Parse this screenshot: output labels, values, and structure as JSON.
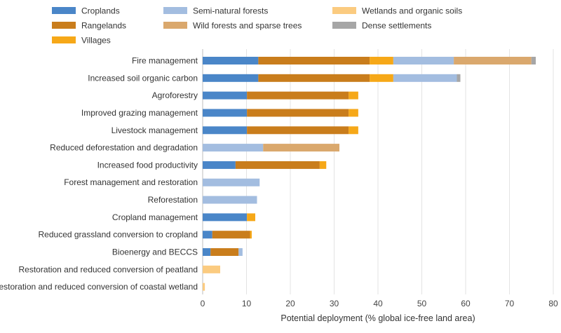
{
  "chart_data": {
    "type": "bar",
    "orientation": "horizontal",
    "stacked": true,
    "xlabel": "Potential deployment (% global ice-free land area)",
    "ylabel": "",
    "xlim": [
      0,
      80
    ],
    "xticks": [
      0,
      10,
      20,
      30,
      40,
      50,
      60,
      70,
      80
    ],
    "grid": true,
    "legend_position": "top",
    "categories": [
      "Fire management",
      "Increased soil organic carbon",
      "Agroforestry",
      "Improved grazing management",
      "Livestock management",
      "Reduced deforestation and degradation",
      "Increased food productivity",
      "Forest management and restoration",
      "Reforestation",
      "Cropland management",
      "Reduced grassland conversion to cropland",
      "Bioenergy and BECCS",
      "Restoration and reduced conversion of peatland",
      "Restoration and reduced conversion of coastal wetland"
    ],
    "series": [
      {
        "name": "Croplands",
        "color": "#4a86c8",
        "values": [
          12.7,
          12.7,
          10.1,
          10.1,
          10.1,
          0,
          7.5,
          0,
          0,
          10.1,
          2.2,
          1.8,
          0,
          0
        ]
      },
      {
        "name": "Rangelands",
        "color": "#c97d1c",
        "values": [
          25.4,
          25.4,
          23.2,
          23.2,
          23.2,
          0,
          19.2,
          0,
          0,
          0,
          8.6,
          6.4,
          0,
          0
        ]
      },
      {
        "name": "Villages",
        "color": "#f6a818",
        "values": [
          5.4,
          5.4,
          2.2,
          2.2,
          2.2,
          0,
          1.5,
          0,
          0,
          1.9,
          0.4,
          0,
          0,
          0
        ]
      },
      {
        "name": "Semi-natural forests",
        "color": "#a3bde0",
        "values": [
          13.8,
          14.5,
          0,
          0,
          0,
          13.8,
          0,
          13.0,
          12.4,
          0,
          0,
          0.9,
          0,
          0
        ]
      },
      {
        "name": "Wild forests and sparse trees",
        "color": "#daa86d",
        "values": [
          17.7,
          0,
          0,
          0,
          0,
          17.4,
          0,
          0,
          0,
          0,
          0,
          0,
          0,
          0
        ]
      },
      {
        "name": "Wetlands and organic soils",
        "color": "#fbcb80",
        "values": [
          0,
          0,
          0,
          0,
          0,
          0,
          0,
          0,
          0,
          0,
          0,
          0,
          4.0,
          0.5
        ]
      },
      {
        "name": "Dense settlements",
        "color": "#a6a6a6",
        "values": [
          1.0,
          0.8,
          0,
          0,
          0,
          0,
          0,
          0,
          0,
          0,
          0,
          0,
          0,
          0
        ]
      }
    ]
  }
}
